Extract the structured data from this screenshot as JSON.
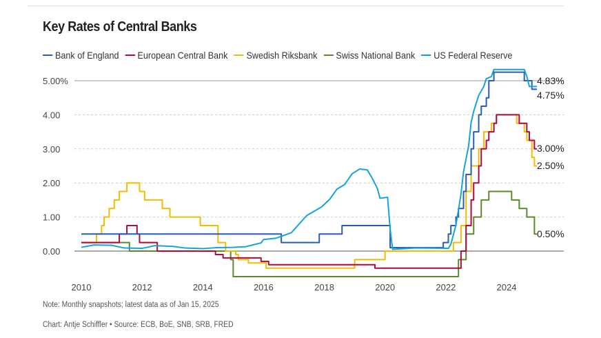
{
  "chart_data": {
    "type": "line",
    "title": "Key Rates of Central Banks",
    "xlabel": "",
    "ylabel": "",
    "x_ticks": [
      "2010",
      "2012",
      "2014",
      "2016",
      "2018",
      "2020",
      "2022",
      "2024"
    ],
    "y_ticks": [
      "0.00",
      "1.00",
      "2.00",
      "3.00",
      "4.00",
      "5.00%"
    ],
    "ylim": [
      -1.0,
      5.4
    ],
    "xlim": [
      "2010-01",
      "2025-01"
    ],
    "grid": "horizontal dashed",
    "legend": "top",
    "series": [
      {
        "name": "Bank of England",
        "color": "#2a5db0",
        "step": true,
        "end_label": "4.75%",
        "points": [
          [
            "2010-01",
            0.5
          ],
          [
            "2016-08",
            0.25
          ],
          [
            "2017-11",
            0.5
          ],
          [
            "2018-08",
            0.75
          ],
          [
            "2020-03",
            0.1
          ],
          [
            "2021-12",
            0.25
          ],
          [
            "2022-02",
            0.5
          ],
          [
            "2022-03",
            0.75
          ],
          [
            "2022-05",
            1.0
          ],
          [
            "2022-06",
            1.25
          ],
          [
            "2022-08",
            1.75
          ],
          [
            "2022-09",
            2.25
          ],
          [
            "2022-11",
            3.0
          ],
          [
            "2022-12",
            3.5
          ],
          [
            "2023-02",
            4.0
          ],
          [
            "2023-03",
            4.25
          ],
          [
            "2023-05",
            4.5
          ],
          [
            "2023-06",
            5.0
          ],
          [
            "2023-08",
            5.25
          ],
          [
            "2024-08",
            5.0
          ],
          [
            "2024-11",
            4.75
          ],
          [
            "2025-01",
            4.75
          ]
        ]
      },
      {
        "name": "European Central Bank",
        "color": "#b0093f",
        "step": true,
        "end_label": "3.00%",
        "points": [
          [
            "2010-01",
            0.25
          ],
          [
            "2011-04",
            0.5
          ],
          [
            "2011-07",
            0.75
          ],
          [
            "2011-11",
            0.5
          ],
          [
            "2011-12",
            0.25
          ],
          [
            "2012-07",
            0.0
          ],
          [
            "2014-06",
            -0.1
          ],
          [
            "2014-09",
            -0.2
          ],
          [
            "2015-12",
            -0.3
          ],
          [
            "2016-03",
            -0.4
          ],
          [
            "2019-09",
            -0.5
          ],
          [
            "2022-07",
            0.0
          ],
          [
            "2022-09",
            0.75
          ],
          [
            "2022-11",
            1.5
          ],
          [
            "2022-12",
            2.0
          ],
          [
            "2023-02",
            2.5
          ],
          [
            "2023-03",
            3.0
          ],
          [
            "2023-05",
            3.25
          ],
          [
            "2023-06",
            3.5
          ],
          [
            "2023-08",
            3.75
          ],
          [
            "2023-09",
            4.0
          ],
          [
            "2024-06",
            3.75
          ],
          [
            "2024-09",
            3.5
          ],
          [
            "2024-10",
            3.25
          ],
          [
            "2024-12",
            3.0
          ],
          [
            "2025-01",
            3.0
          ]
        ]
      },
      {
        "name": "Swedish Riksbank",
        "color": "#f2bd00",
        "step": true,
        "end_label": "2.50%",
        "points": [
          [
            "2010-01",
            0.25
          ],
          [
            "2010-07",
            0.5
          ],
          [
            "2010-09",
            0.75
          ],
          [
            "2010-10",
            1.0
          ],
          [
            "2010-12",
            1.25
          ],
          [
            "2011-02",
            1.5
          ],
          [
            "2011-04",
            1.75
          ],
          [
            "2011-07",
            2.0
          ],
          [
            "2011-12",
            1.75
          ],
          [
            "2012-02",
            1.5
          ],
          [
            "2012-09",
            1.25
          ],
          [
            "2012-12",
            1.0
          ],
          [
            "2013-12",
            0.75
          ],
          [
            "2014-07",
            0.25
          ],
          [
            "2014-10",
            0.0
          ],
          [
            "2015-02",
            -0.1
          ],
          [
            "2015-03",
            -0.25
          ],
          [
            "2015-07",
            -0.35
          ],
          [
            "2016-02",
            -0.5
          ],
          [
            "2019-01",
            -0.25
          ],
          [
            "2020-01",
            0.0
          ],
          [
            "2022-04",
            0.25
          ],
          [
            "2022-07",
            0.75
          ],
          [
            "2022-09",
            1.75
          ],
          [
            "2022-11",
            2.5
          ],
          [
            "2023-02",
            3.0
          ],
          [
            "2023-04",
            3.5
          ],
          [
            "2023-07",
            3.75
          ],
          [
            "2023-09",
            4.0
          ],
          [
            "2024-05",
            3.75
          ],
          [
            "2024-08",
            3.5
          ],
          [
            "2024-09",
            3.25
          ],
          [
            "2024-11",
            2.75
          ],
          [
            "2024-12",
            2.5
          ],
          [
            "2025-01",
            2.5
          ]
        ]
      },
      {
        "name": "Swiss National Bank",
        "color": "#5a8a2a",
        "step": true,
        "end_label": "0.50%",
        "points": [
          [
            "2010-01",
            0.25
          ],
          [
            "2011-08",
            0.0
          ],
          [
            "2014-12",
            -0.25
          ],
          [
            "2015-01",
            -0.75
          ],
          [
            "2022-06",
            -0.25
          ],
          [
            "2022-09",
            0.5
          ],
          [
            "2022-12",
            1.0
          ],
          [
            "2023-03",
            1.5
          ],
          [
            "2023-06",
            1.75
          ],
          [
            "2024-03",
            1.5
          ],
          [
            "2024-06",
            1.25
          ],
          [
            "2024-09",
            1.0
          ],
          [
            "2024-12",
            0.5
          ],
          [
            "2025-01",
            0.5
          ]
        ]
      },
      {
        "name": "US Federal Reserve",
        "color": "#14a3dc",
        "step": false,
        "end_label": "4.83%",
        "points": [
          [
            "2010-01",
            0.11
          ],
          [
            "2010-06",
            0.18
          ],
          [
            "2011-01",
            0.17
          ],
          [
            "2011-06",
            0.09
          ],
          [
            "2012-01",
            0.08
          ],
          [
            "2012-06",
            0.16
          ],
          [
            "2013-01",
            0.14
          ],
          [
            "2013-06",
            0.09
          ],
          [
            "2014-01",
            0.07
          ],
          [
            "2014-06",
            0.1
          ],
          [
            "2015-01",
            0.11
          ],
          [
            "2015-06",
            0.13
          ],
          [
            "2015-12",
            0.24
          ],
          [
            "2016-01",
            0.34
          ],
          [
            "2016-06",
            0.38
          ],
          [
            "2016-12",
            0.54
          ],
          [
            "2017-03",
            0.79
          ],
          [
            "2017-06",
            1.04
          ],
          [
            "2017-12",
            1.3
          ],
          [
            "2018-03",
            1.51
          ],
          [
            "2018-06",
            1.82
          ],
          [
            "2018-09",
            1.95
          ],
          [
            "2018-12",
            2.27
          ],
          [
            "2019-03",
            2.41
          ],
          [
            "2019-06",
            2.38
          ],
          [
            "2019-08",
            2.13
          ],
          [
            "2019-10",
            1.83
          ],
          [
            "2019-11",
            1.55
          ],
          [
            "2020-02",
            1.58
          ],
          [
            "2020-03",
            0.65
          ],
          [
            "2020-04",
            0.05
          ],
          [
            "2021-01",
            0.09
          ],
          [
            "2022-02",
            0.08
          ],
          [
            "2022-03",
            0.2
          ],
          [
            "2022-05",
            0.77
          ],
          [
            "2022-06",
            1.21
          ],
          [
            "2022-07",
            1.68
          ],
          [
            "2022-08",
            2.33
          ],
          [
            "2022-10",
            3.08
          ],
          [
            "2022-11",
            3.78
          ],
          [
            "2022-12",
            4.1
          ],
          [
            "2023-02",
            4.57
          ],
          [
            "2023-04",
            4.83
          ],
          [
            "2023-05",
            5.06
          ],
          [
            "2023-07",
            5.12
          ],
          [
            "2023-08",
            5.33
          ],
          [
            "2024-08",
            5.33
          ],
          [
            "2024-09",
            5.13
          ],
          [
            "2024-10",
            4.83
          ],
          [
            "2025-01",
            4.83
          ]
        ]
      }
    ]
  },
  "notes": {
    "note": "Note: Monthly snapshots; latest data as of Jan 15, 2025",
    "source": "Chart: Antje Schiffler • Source: ECB, BoE, SNB, SRB, FRED"
  }
}
